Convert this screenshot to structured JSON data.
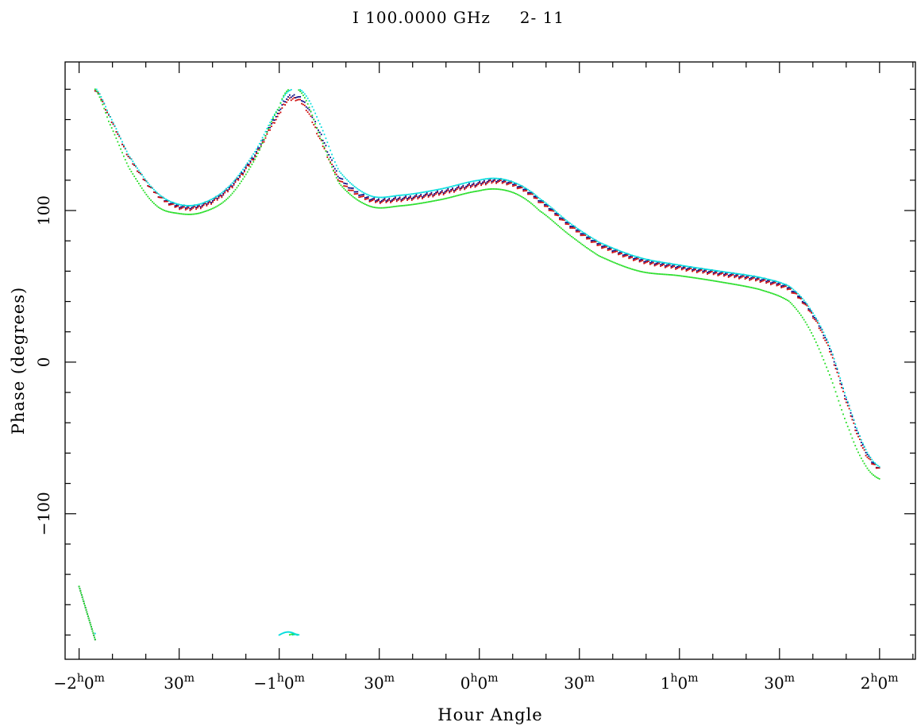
{
  "chart_data": {
    "type": "scatter",
    "title": "I 100.0000 GHz     2- 11",
    "xlabel": "Hour Angle",
    "ylabel": "Phase (degrees)",
    "xlim": [
      -2.07,
      2.18
    ],
    "ylim": [
      -196,
      198
    ],
    "x_unit": "hours",
    "x_ticks": [
      {
        "value": -2.0,
        "h": "−2",
        "m": "0"
      },
      {
        "value": -1.5,
        "h": "",
        "m": "30"
      },
      {
        "value": -1.0,
        "h": "−1",
        "m": "0"
      },
      {
        "value": -0.5,
        "h": "",
        "m": "30"
      },
      {
        "value": 0.0,
        "h": "0",
        "m": "0"
      },
      {
        "value": 0.5,
        "h": "",
        "m": "30"
      },
      {
        "value": 1.0,
        "h": "1",
        "m": "0"
      },
      {
        "value": 1.5,
        "h": "",
        "m": "30"
      },
      {
        "value": 2.0,
        "h": "2",
        "m": "0"
      }
    ],
    "x_minor_step": 0.1667,
    "y_ticks": [
      100,
      0,
      -100
    ],
    "y_minor_step": 20,
    "grid": false,
    "legend": "none",
    "series": [
      {
        "color": "#000080",
        "style": "dots",
        "wrap": true,
        "x": [
          -1.92,
          -1.85,
          -1.75,
          -1.62,
          -1.5,
          -1.38,
          -1.25,
          -1.12,
          -1.0,
          -0.95,
          -0.88,
          -0.8,
          -0.7,
          -0.55,
          -0.4,
          -0.2,
          0.0,
          0.1,
          0.2,
          0.3,
          0.45,
          0.6,
          0.8,
          1.0,
          1.2,
          1.4,
          1.55,
          1.65,
          1.75,
          1.85,
          1.93,
          2.0
        ],
        "y": [
          180,
          162,
          135,
          112,
          103,
          104,
          115,
          137,
          165,
          175,
          172,
          152,
          122,
          108,
          108,
          112,
          118,
          120,
          116,
          107,
          91,
          78,
          68,
          63,
          59,
          55,
          49,
          35,
          10,
          -30,
          -58,
          -70
        ]
      },
      {
        "color": "#cc0000",
        "style": "dots",
        "wrap": true,
        "x": [
          -1.92,
          -1.85,
          -1.75,
          -1.62,
          -1.5,
          -1.38,
          -1.25,
          -1.12,
          -1.0,
          -0.95,
          -0.88,
          -0.8,
          -0.7,
          -0.55,
          -0.4,
          -0.2,
          0.0,
          0.1,
          0.2,
          0.3,
          0.45,
          0.6,
          0.8,
          1.0,
          1.2,
          1.4,
          1.55,
          1.65,
          1.75,
          1.85,
          1.93,
          2.0
        ],
        "y": [
          180,
          162,
          135,
          112,
          102,
          103,
          114,
          136,
          163,
          173,
          170,
          148,
          120,
          107,
          107,
          111,
          117,
          119,
          115,
          106,
          90,
          77,
          67,
          62,
          58,
          54,
          48,
          34,
          8,
          -32,
          -60,
          -70
        ]
      },
      {
        "color": "#00dddd",
        "style": "dots",
        "wrap": true,
        "x": [
          -1.92,
          -1.85,
          -1.75,
          -1.62,
          -1.5,
          -1.38,
          -1.25,
          -1.12,
          -1.0,
          -0.95,
          -0.88,
          -0.8,
          -0.7,
          -0.55,
          -0.4,
          -0.2,
          0.0,
          0.1,
          0.2,
          0.3,
          0.45,
          0.6,
          0.8,
          1.0,
          1.2,
          1.4,
          1.55,
          1.65,
          1.75,
          1.85,
          1.93,
          2.0
        ],
        "y": [
          181,
          163,
          136,
          113,
          104,
          105,
          116,
          139,
          168,
          179,
          178,
          158,
          126,
          110,
          110,
          114,
          120,
          121,
          117,
          108,
          92,
          79,
          69,
          64,
          60,
          56,
          50,
          36,
          11,
          -29,
          -57,
          -69
        ]
      },
      {
        "color": "#22dd22",
        "style": "dots",
        "wrap": true,
        "x": [
          -1.92,
          -1.85,
          -1.75,
          -1.62,
          -1.5,
          -1.38,
          -1.25,
          -1.12,
          -1.0,
          -0.95,
          -0.88,
          -0.8,
          -0.7,
          -0.55,
          -0.4,
          -0.2,
          0.0,
          0.1,
          0.2,
          0.3,
          0.45,
          0.6,
          0.8,
          1.0,
          1.2,
          1.4,
          1.55,
          1.65,
          1.75,
          1.85,
          1.93,
          2.0
        ],
        "y": [
          180,
          158,
          128,
          104,
          98,
          99,
          109,
          134,
          168,
          180,
          176,
          150,
          118,
          103,
          103,
          107,
          113,
          114,
          110,
          100,
          84,
          70,
          60,
          57,
          53,
          48,
          40,
          22,
          -8,
          -45,
          -68,
          -77
        ]
      }
    ]
  }
}
